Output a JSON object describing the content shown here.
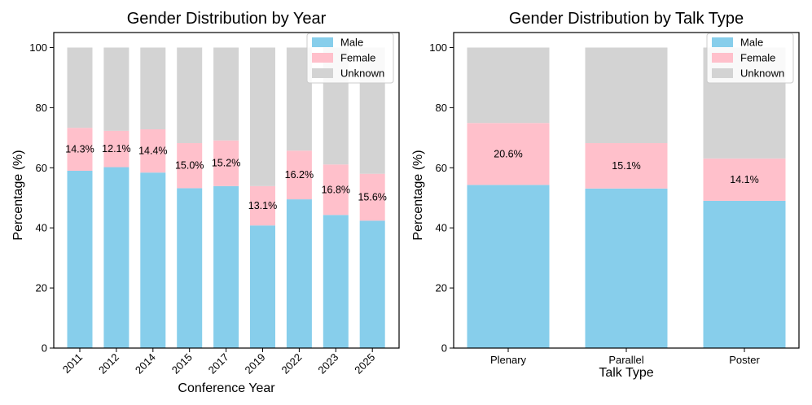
{
  "colors": {
    "male": "#87ceeb",
    "female": "#ffc0cb",
    "unknown": "#d3d3d3"
  },
  "chart_data": [
    {
      "type": "bar",
      "stacked": true,
      "title": "Gender Distribution by Year",
      "xlabel": "Conference Year",
      "ylabel": "Percentage (%)",
      "ylim": [
        0,
        105
      ],
      "yticks": [
        "0",
        "20",
        "40",
        "60",
        "80",
        "100"
      ],
      "categories": [
        "2011",
        "2012",
        "2014",
        "2015",
        "2017",
        "2019",
        "2022",
        "2023",
        "2025"
      ],
      "series": [
        {
          "name": "Male",
          "values": [
            59.0,
            60.2,
            58.4,
            53.2,
            53.9,
            40.8,
            49.5,
            44.3,
            42.4
          ]
        },
        {
          "name": "Female",
          "values": [
            14.3,
            12.1,
            14.4,
            15.0,
            15.2,
            13.1,
            16.2,
            16.8,
            15.6
          ]
        },
        {
          "name": "Unknown",
          "values": [
            26.7,
            27.7,
            27.2,
            31.8,
            30.9,
            46.1,
            34.3,
            38.9,
            42.0
          ]
        }
      ],
      "annotations": [
        "14.3%",
        "12.1%",
        "14.4%",
        "15.0%",
        "15.2%",
        "13.1%",
        "16.2%",
        "16.8%",
        "15.6%"
      ],
      "legend": {
        "position": "top-right",
        "entries": [
          "Male",
          "Female",
          "Unknown"
        ]
      },
      "rotate_xticks": true
    },
    {
      "type": "bar",
      "stacked": true,
      "title": "Gender Distribution by Talk Type",
      "xlabel": "Talk Type",
      "ylabel": "Percentage (%)",
      "ylim": [
        0,
        105
      ],
      "yticks": [
        "0",
        "20",
        "40",
        "60",
        "80",
        "100"
      ],
      "categories": [
        "Plenary",
        "Parallel",
        "Poster"
      ],
      "series": [
        {
          "name": "Male",
          "values": [
            54.3,
            53.1,
            49.0
          ]
        },
        {
          "name": "Female",
          "values": [
            20.6,
            15.1,
            14.1
          ]
        },
        {
          "name": "Unknown",
          "values": [
            25.1,
            31.8,
            36.9
          ]
        }
      ],
      "annotations": [
        "20.6%",
        "15.1%",
        "14.1%"
      ],
      "legend": {
        "position": "top-right",
        "entries": [
          "Male",
          "Female",
          "Unknown"
        ]
      },
      "rotate_xticks": false
    }
  ]
}
